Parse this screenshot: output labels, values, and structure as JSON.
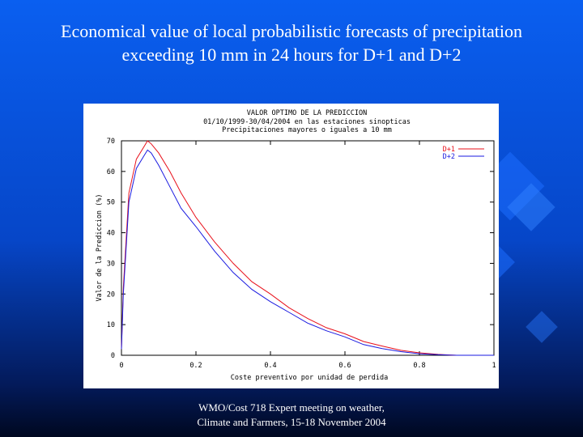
{
  "slide": {
    "title": "Economical value of local probabilistic forecasts of precipitation exceeding 10 mm in 24 hours for D+1 and D+2",
    "footer": "WMO/Cost 718 Expert meeting on weather, Climate and Farmers, 15-18 November 2004"
  },
  "chart_data": {
    "type": "line",
    "title": "VALOR OPTIMO DE LA PREDICCION",
    "subtitle_lines": [
      "01/10/1999-30/04/2004 en las estaciones sinopticas",
      "Precipitaciones mayores o iguales a 10 mm"
    ],
    "xlabel": "Coste preventivo por unidad de perdida",
    "ylabel": "Valor de la Prediccion (%)",
    "xlim": [
      0,
      1
    ],
    "ylim": [
      0,
      70
    ],
    "x_ticks": [
      "0",
      "0.2",
      "0.4",
      "0.6",
      "0.8",
      "1"
    ],
    "y_ticks": [
      "0",
      "10",
      "20",
      "30",
      "40",
      "50",
      "60",
      "70"
    ],
    "legend_position": "top-right",
    "grid": false,
    "series": [
      {
        "name": "D+1",
        "color": "#e8101a",
        "x": [
          0.0,
          0.005,
          0.02,
          0.04,
          0.06,
          0.07,
          0.08,
          0.1,
          0.13,
          0.16,
          0.2,
          0.25,
          0.3,
          0.35,
          0.4,
          0.45,
          0.5,
          0.55,
          0.6,
          0.65,
          0.7,
          0.75,
          0.8,
          0.85,
          0.88,
          0.9,
          1.0
        ],
        "values": [
          2,
          22,
          53,
          64,
          68,
          70,
          69,
          66,
          60,
          53,
          45,
          37,
          30,
          24,
          20,
          15.5,
          12,
          9,
          7,
          4.5,
          3,
          1.6,
          0.8,
          0.3,
          0.1,
          0,
          0
        ]
      },
      {
        "name": "D+2",
        "color": "#1a1ae0",
        "x": [
          0.0,
          0.005,
          0.02,
          0.04,
          0.06,
          0.07,
          0.08,
          0.1,
          0.13,
          0.16,
          0.2,
          0.25,
          0.3,
          0.35,
          0.4,
          0.45,
          0.5,
          0.55,
          0.6,
          0.65,
          0.7,
          0.75,
          0.8,
          0.85,
          0.88,
          0.9,
          1.0
        ],
        "values": [
          2,
          20,
          50,
          61,
          65,
          67,
          66,
          62,
          55,
          48,
          42,
          34,
          27,
          21.5,
          17.5,
          14,
          10.5,
          8,
          6,
          3.5,
          2.2,
          1.2,
          0.5,
          0.2,
          0.05,
          0,
          0
        ]
      }
    ]
  }
}
